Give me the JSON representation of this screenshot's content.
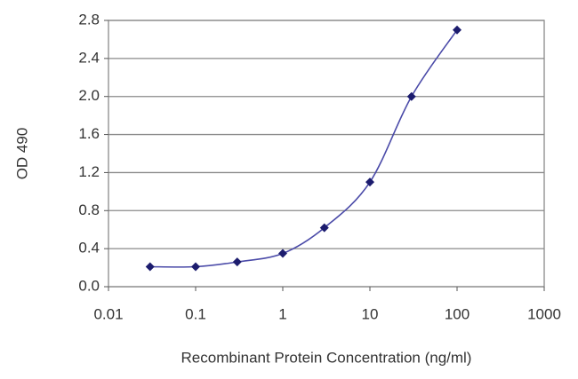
{
  "chart_data": {
    "type": "line",
    "x_label": "Recombinant Protein Concentration (ng/ml)",
    "y_label": "OD 490",
    "x": [
      0.03,
      0.1,
      0.3,
      1,
      3,
      10,
      30,
      100
    ],
    "values": [
      0.21,
      0.21,
      0.26,
      0.35,
      0.62,
      1.1,
      2.0,
      2.7
    ],
    "line_color": "#4a4aa8",
    "marker_color": "#1c1c6e",
    "xscale": "log",
    "xlim": [
      0.01,
      1000
    ],
    "xticks": [
      0.01,
      0.1,
      1,
      10,
      100,
      1000
    ],
    "ylim": [
      0,
      2.8
    ],
    "yticks": [
      {
        "value": 0,
        "label": "0.0"
      },
      0.4,
      0.8,
      1.2,
      1.6,
      {
        "value": 2,
        "label": "2.0"
      },
      2.4,
      2.8
    ],
    "grid": true
  }
}
